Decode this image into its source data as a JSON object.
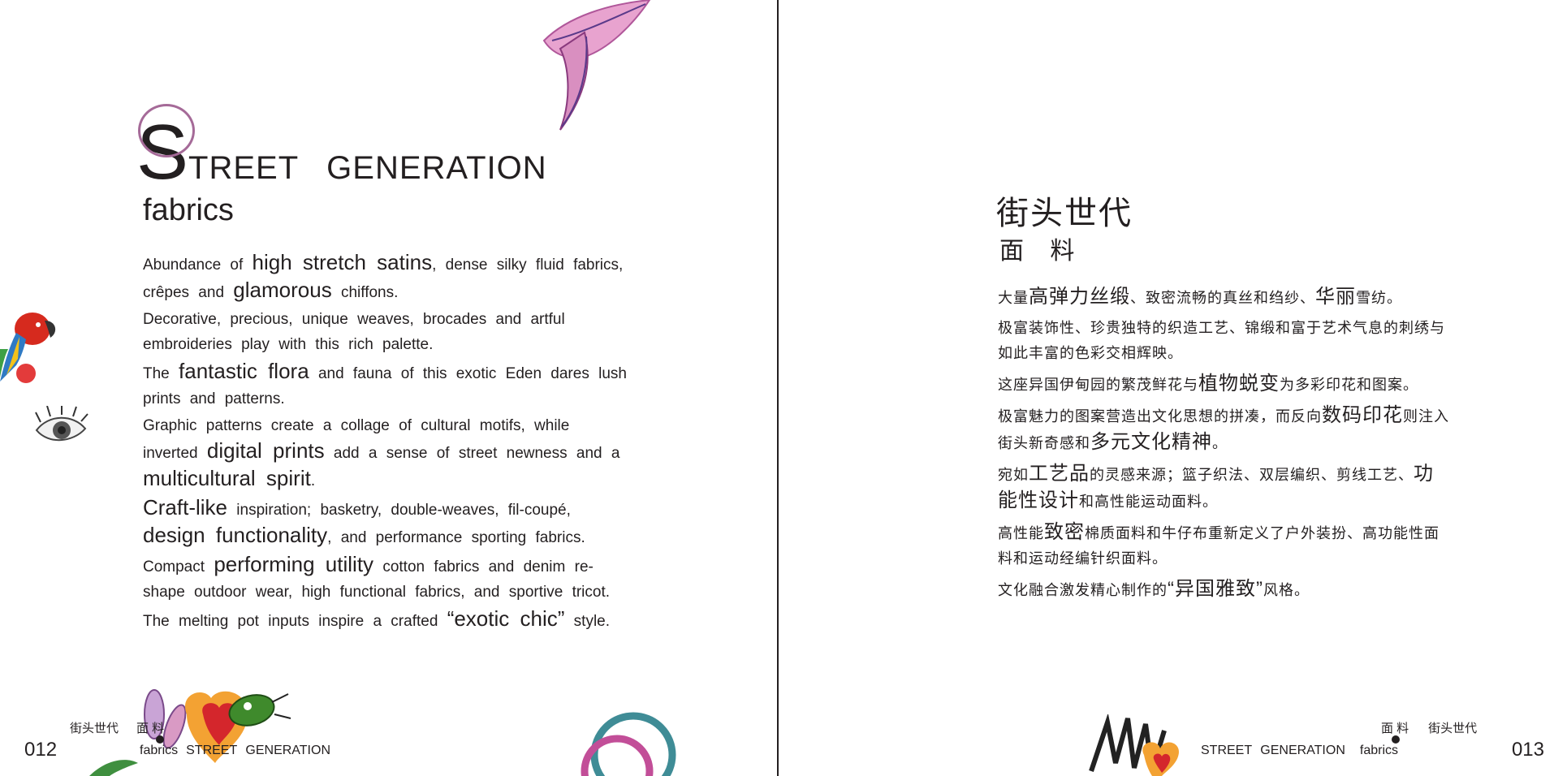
{
  "left_page": {
    "title_initial": "S",
    "title_rest_1": "TREET",
    "title_rest_2": "GENERATION",
    "subtitle": "fabrics",
    "paragraphs": {
      "p1": {
        "a": "Abundance of",
        "b": "high stretch satins",
        "c": ", dense silky fluid fabrics, crêpes and",
        "d": "glamorous",
        "e": "chiffons."
      },
      "p2": {
        "a": "Decorative, precious, unique weaves, brocades and artful embroideries play with this rich palette."
      },
      "p3": {
        "a": "The",
        "b": "fantastic flora",
        "c": "and fauna of this exotic Eden dares lush prints and patterns."
      },
      "p4": {
        "a": "Graphic patterns create a collage of cultural motifs, while inverted",
        "b": "digital prints",
        "c": "add a sense of street newness and a",
        "d": "multicultural spirit",
        "e": "."
      },
      "p5": {
        "a": "Craft-like",
        "b": "inspiration; basketry, double-weaves, fil-coupé,",
        "c": "design functionality",
        "d": ", and performance sporting fabrics."
      },
      "p6": {
        "a": "Compact",
        "b": "performing utility",
        "c": "cotton fabrics and denim re-shape outdoor wear, high functional fabrics, and sportive tricot."
      },
      "p7": {
        "a": "The melting pot inputs inspire a crafted",
        "b": "“exotic chic”",
        "c": "style."
      }
    },
    "folio": "012",
    "footer_zh_1": "街头世代",
    "footer_zh_2": "面 料",
    "footer_en_1": "fabrics",
    "footer_en_2": "STREET GENERATION"
  },
  "right_page": {
    "title": "街头世代",
    "subtitle": "面 料",
    "paragraphs": {
      "p1": {
        "a": "大量",
        "b": "高弹力丝缎",
        "c": "、致密流畅的真丝和绉纱、",
        "d": "华丽",
        "e": "雪纺。"
      },
      "p2": {
        "a": "极富装饰性、珍贵独特的织造工艺、锦缎和富于艺术气息的刺绣与如此丰富的色彩交相辉映。"
      },
      "p3": {
        "a": "这座异国伊甸园的繁茂鲜花与",
        "b": "植物蜕变",
        "c": "为多彩印花和图案。"
      },
      "p4": {
        "a": "极富魅力的图案营造出文化思想的拼凑，而反向",
        "b": "数码印花",
        "c": "则注入街头新奇感和",
        "d": "多元文化精神",
        "e": "。"
      },
      "p5": {
        "a": "宛如",
        "b": "工艺品",
        "c": "的灵感来源；篮子织法、双层编织、剪线工艺、",
        "d": "功能性设计",
        "e": "和高性能运动面料。"
      },
      "p6": {
        "a": "高性能",
        "b": "致密",
        "c": "棉质面料和牛仔布重新定义了户外装扮、高功能性面料和运动经编针织面料。"
      },
      "p7": {
        "a": "文化融合激发精心制作的",
        "b": "“异国雅致”",
        "c": "风格。"
      }
    },
    "folio": "013",
    "footer_zh_1": "面 料",
    "footer_zh_2": "街头世代",
    "footer_en_1": "STREET GENERATION",
    "footer_en_2": "fabrics"
  },
  "colors": {
    "text": "#231f20",
    "leaf": "#d98fc0",
    "ring_purple": "#a56a98",
    "ring_teal": "#3f8c96",
    "ring_magenta": "#c24e98"
  }
}
